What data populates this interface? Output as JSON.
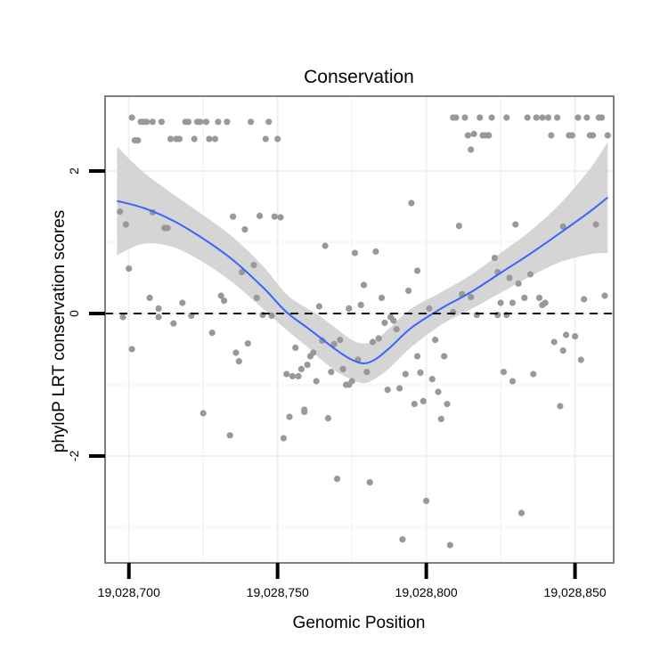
{
  "chart_data": {
    "type": "scatter",
    "title": "Conservation",
    "xlabel": "Genomic Position",
    "ylabel": "phyloP LRT conservation scores",
    "xlim": [
      19028692,
      19028863
    ],
    "ylim": [
      -3.5,
      3.05
    ],
    "x_ticks": [
      {
        "value": 19028700,
        "label": "19,028,700"
      },
      {
        "value": 19028750,
        "label": "19,028,750"
      },
      {
        "value": 19028800,
        "label": "19,028,800"
      },
      {
        "value": 19028850,
        "label": "19,028,850"
      }
    ],
    "y_ticks": [
      {
        "value": -2,
        "label": "-2"
      },
      {
        "value": 0,
        "label": "0"
      },
      {
        "value": 2,
        "label": "2"
      }
    ],
    "minor_x": [
      19028725,
      19028775,
      19028825
    ],
    "minor_y": [
      -3,
      -1,
      1
    ],
    "grid": true,
    "reference_line": {
      "y": 0,
      "style": "dashed",
      "color": "#000000"
    },
    "colors": {
      "points": "#999999",
      "smooth_line": "#3366ff",
      "band": "#d3d3d3",
      "grid": "#f0f0f0",
      "frame": "#7f7f7f"
    },
    "points": [
      [
        19028697,
        1.43
      ],
      [
        19028698,
        -0.05
      ],
      [
        19028699,
        1.25
      ],
      [
        19028700,
        0.63
      ],
      [
        19028701,
        -0.5
      ],
      [
        19028701,
        2.75
      ],
      [
        19028702,
        2.43
      ],
      [
        19028703,
        2.43
      ],
      [
        19028704,
        2.69
      ],
      [
        19028705,
        2.69
      ],
      [
        19028706,
        2.69
      ],
      [
        19028707,
        0.22
      ],
      [
        19028708,
        1.42
      ],
      [
        19028708,
        2.69
      ],
      [
        19028710,
        -0.05
      ],
      [
        19028710,
        0.07
      ],
      [
        19028711,
        2.69
      ],
      [
        19028712,
        1.2
      ],
      [
        19028713,
        1.2
      ],
      [
        19028714,
        2.45
      ],
      [
        19028715,
        -0.14
      ],
      [
        19028716,
        2.45
      ],
      [
        19028717,
        2.45
      ],
      [
        19028718,
        0.15
      ],
      [
        19028719,
        2.69
      ],
      [
        19028720,
        2.69
      ],
      [
        19028721,
        -0.03
      ],
      [
        19028722,
        2.45
      ],
      [
        19028723,
        2.69
      ],
      [
        19028724,
        2.69
      ],
      [
        19028725,
        -1.4
      ],
      [
        19028726,
        2.69
      ],
      [
        19028727,
        2.45
      ],
      [
        19028728,
        -0.27
      ],
      [
        19028729,
        2.45
      ],
      [
        19028730,
        2.69
      ],
      [
        19028731,
        0.25
      ],
      [
        19028732,
        0.18
      ],
      [
        19028733,
        2.69
      ],
      [
        19028734,
        -1.71
      ],
      [
        19028735,
        1.36
      ],
      [
        19028736,
        -0.55
      ],
      [
        19028737,
        -0.67
      ],
      [
        19028738,
        0.58
      ],
      [
        19028739,
        1.18
      ],
      [
        19028740,
        -0.42
      ],
      [
        19028741,
        2.69
      ],
      [
        19028742,
        0.68
      ],
      [
        19028743,
        0.22
      ],
      [
        19028744,
        1.37
      ],
      [
        19028745,
        -0.02
      ],
      [
        19028746,
        2.45
      ],
      [
        19028747,
        2.69
      ],
      [
        19028748,
        -0.03
      ],
      [
        19028749,
        1.36
      ],
      [
        19028750,
        2.45
      ],
      [
        19028751,
        1.35
      ],
      [
        19028752,
        -1.75
      ],
      [
        19028753,
        -0.85
      ],
      [
        19028754,
        -1.45
      ],
      [
        19028755,
        -0.88
      ],
      [
        19028756,
        -0.48
      ],
      [
        19028757,
        -0.88
      ],
      [
        19028758,
        -0.78
      ],
      [
        19028759,
        -1.35
      ],
      [
        19028759,
        -1.38
      ],
      [
        19028760,
        -0.72
      ],
      [
        19028761,
        -0.6
      ],
      [
        19028762,
        -0.55
      ],
      [
        19028763,
        -0.95
      ],
      [
        19028764,
        0.1
      ],
      [
        19028765,
        -0.38
      ],
      [
        19028766,
        0.95
      ],
      [
        19028767,
        -1.47
      ],
      [
        19028768,
        -0.82
      ],
      [
        19028769,
        -0.43
      ],
      [
        19028770,
        -2.32
      ],
      [
        19028771,
        -0.37
      ],
      [
        19028772,
        -0.78
      ],
      [
        19028773,
        -1.0
      ],
      [
        19028774,
        0.07
      ],
      [
        19028774,
        -1.0
      ],
      [
        19028775,
        -0.95
      ],
      [
        19028776,
        0.85
      ],
      [
        19028777,
        -0.65
      ],
      [
        19028778,
        0.12
      ],
      [
        19028779,
        0.4
      ],
      [
        19028780,
        -0.82
      ],
      [
        19028781,
        -2.37
      ],
      [
        19028782,
        -0.4
      ],
      [
        19028783,
        0.87
      ],
      [
        19028784,
        -0.35
      ],
      [
        19028785,
        0.22
      ],
      [
        19028786,
        -0.13
      ],
      [
        19028787,
        -1.07
      ],
      [
        19028788,
        -0.05
      ],
      [
        19028789,
        -0.1
      ],
      [
        19028790,
        -0.22
      ],
      [
        19028791,
        -1.05
      ],
      [
        19028792,
        -3.17
      ],
      [
        19028793,
        -0.85
      ],
      [
        19028794,
        0.32
      ],
      [
        19028795,
        1.55
      ],
      [
        19028796,
        -1.27
      ],
      [
        19028797,
        0.6
      ],
      [
        19028797,
        -0.6
      ],
      [
        19028798,
        -0.83
      ],
      [
        19028799,
        -1.23
      ],
      [
        19028800,
        -2.63
      ],
      [
        19028801,
        0.07
      ],
      [
        19028802,
        -0.92
      ],
      [
        19028803,
        -0.37
      ],
      [
        19028804,
        -1.1
      ],
      [
        19028805,
        -1.48
      ],
      [
        19028806,
        -0.6
      ],
      [
        19028807,
        -1.27
      ],
      [
        19028808,
        -3.25
      ],
      [
        19028809,
        0.02
      ],
      [
        19028809,
        2.75
      ],
      [
        19028810,
        2.75
      ],
      [
        19028811,
        1.23
      ],
      [
        19028812,
        0.27
      ],
      [
        19028813,
        2.75
      ],
      [
        19028814,
        2.5
      ],
      [
        19028815,
        0.23
      ],
      [
        19028815,
        2.3
      ],
      [
        19028816,
        2.52
      ],
      [
        19028817,
        -0.02
      ],
      [
        19028818,
        2.75
      ],
      [
        19028819,
        2.5
      ],
      [
        19028820,
        2.5
      ],
      [
        19028821,
        2.5
      ],
      [
        19028822,
        2.75
      ],
      [
        19028823,
        0.78
      ],
      [
        19028824,
        -0.02
      ],
      [
        19028824,
        0.58
      ],
      [
        19028825,
        0.15
      ],
      [
        19028826,
        -0.82
      ],
      [
        19028827,
        -0.02
      ],
      [
        19028827,
        2.75
      ],
      [
        19028828,
        0.5
      ],
      [
        19028829,
        0.15
      ],
      [
        19028829,
        -0.95
      ],
      [
        19028830,
        1.25
      ],
      [
        19028831,
        0.42
      ],
      [
        19028832,
        -2.8
      ],
      [
        19028833,
        0.22
      ],
      [
        19028834,
        2.75
      ],
      [
        19028835,
        0.55
      ],
      [
        19028836,
        -0.85
      ],
      [
        19028837,
        2.75
      ],
      [
        19028838,
        0.22
      ],
      [
        19028839,
        0.12
      ],
      [
        19028839,
        2.75
      ],
      [
        19028840,
        0.15
      ],
      [
        19028841,
        2.75
      ],
      [
        19028842,
        2.5
      ],
      [
        19028843,
        -0.4
      ],
      [
        19028844,
        2.75
      ],
      [
        19028845,
        -1.3
      ],
      [
        19028846,
        -0.52
      ],
      [
        19028846,
        1.22
      ],
      [
        19028847,
        -0.3
      ],
      [
        19028848,
        2.5
      ],
      [
        19028849,
        2.5
      ],
      [
        19028850,
        -0.32
      ],
      [
        19028851,
        2.75
      ],
      [
        19028852,
        -0.65
      ],
      [
        19028853,
        0.2
      ],
      [
        19028854,
        2.75
      ],
      [
        19028855,
        2.5
      ],
      [
        19028856,
        2.5
      ],
      [
        19028857,
        1.25
      ],
      [
        19028858,
        2.75
      ],
      [
        19028859,
        2.75
      ],
      [
        19028860,
        0.25
      ],
      [
        19028861,
        2.5
      ]
    ],
    "smooth": {
      "x": [
        19028696,
        19028705,
        19028715,
        19028725,
        19028735,
        19028745,
        19028753,
        19028760,
        19028765,
        19028770,
        19028775,
        19028779,
        19028783,
        19028788,
        19028795,
        19028805,
        19028815,
        19028825,
        19028835,
        19028845,
        19028855,
        19028861
      ],
      "y": [
        1.58,
        1.48,
        1.3,
        1.05,
        0.75,
        0.37,
        0.02,
        -0.2,
        -0.36,
        -0.52,
        -0.65,
        -0.7,
        -0.64,
        -0.47,
        -0.2,
        0.07,
        0.3,
        0.57,
        0.84,
        1.13,
        1.43,
        1.63
      ],
      "lower": [
        0.82,
        0.98,
        0.93,
        0.72,
        0.43,
        0.07,
        -0.23,
        -0.47,
        -0.66,
        -0.82,
        -0.93,
        -0.98,
        -0.91,
        -0.75,
        -0.47,
        -0.16,
        0.06,
        0.29,
        0.52,
        0.72,
        0.83,
        0.85
      ],
      "upper": [
        2.34,
        1.98,
        1.67,
        1.38,
        1.07,
        0.67,
        0.27,
        0.07,
        -0.06,
        -0.22,
        -0.37,
        -0.42,
        -0.37,
        -0.19,
        0.07,
        0.3,
        0.54,
        0.85,
        1.16,
        1.54,
        2.03,
        2.41
      ]
    }
  }
}
